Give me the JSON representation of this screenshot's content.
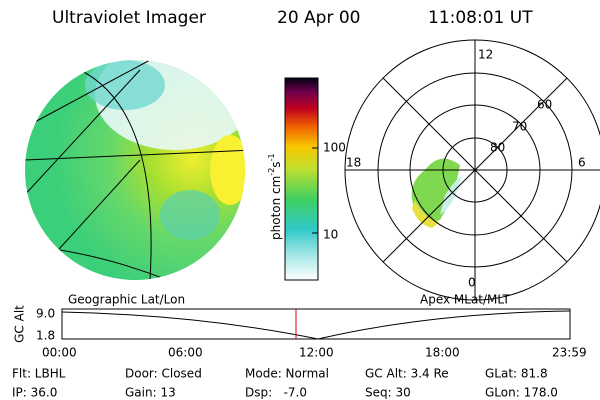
{
  "header": {
    "title": "Ultraviolet Imager",
    "date": "20 Apr 00",
    "time": "11:08:01 UT"
  },
  "colorbar": {
    "unit": "photon cm",
    "exp1": "-2",
    "s": "s",
    "exp2": "-1",
    "ticks": [
      "100",
      "10"
    ]
  },
  "polar": {
    "mlt_labels": [
      "12",
      "18",
      "6",
      "0"
    ],
    "lat_labels": [
      "60",
      "70",
      "80"
    ]
  },
  "labels": {
    "left": "Geographic Lat/Lon",
    "right": "Apex MLat/MLT"
  },
  "altitude": {
    "axis_label": "GC Alt",
    "ticks": [
      "9.0",
      "1.8"
    ],
    "times": [
      "00:00",
      "06:00",
      "12:00",
      "18:00",
      "23:59"
    ]
  },
  "status": [
    [
      "Flt: LBHL",
      "Door: Closed",
      "Mode: Normal",
      "GC Alt: 3.4 Re",
      "GLat: 81.8"
    ],
    [
      "IP: 36.0",
      "Gain: 13",
      "Dsp:   -7.0",
      "Seq: 30",
      "GLon: 178.0"
    ]
  ]
}
